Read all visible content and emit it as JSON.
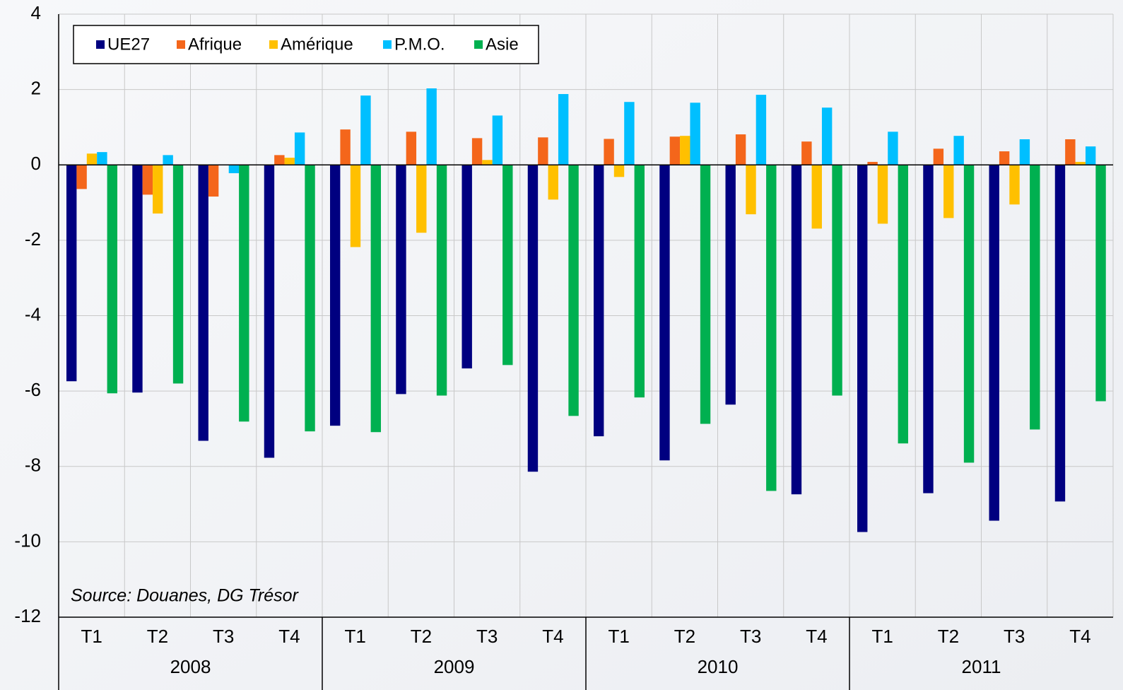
{
  "chart_data": {
    "type": "bar",
    "annotation": "Source: Douanes, DG Trésor",
    "categories": [
      "T1",
      "T2",
      "T3",
      "T4",
      "T1",
      "T2",
      "T3",
      "T4",
      "T1",
      "T2",
      "T3",
      "T4",
      "T1",
      "T2",
      "T3",
      "T4"
    ],
    "groups": [
      "2008",
      "2009",
      "2010",
      "2011"
    ],
    "series": [
      {
        "name": "UE27",
        "color": "#000080",
        "values": [
          -5.74,
          -6.04,
          -7.32,
          -7.77,
          -6.92,
          -6.08,
          -5.4,
          -8.14,
          -7.2,
          -7.84,
          -6.36,
          -8.74,
          -9.74,
          -8.71,
          -9.44,
          -8.93
        ]
      },
      {
        "name": "Afrique",
        "color": "#f4661b",
        "values": [
          -0.64,
          -0.79,
          -0.84,
          0.26,
          0.94,
          0.88,
          0.71,
          0.73,
          0.69,
          0.75,
          0.81,
          0.62,
          0.08,
          0.43,
          0.36,
          0.68
        ]
      },
      {
        "name": "Amérique",
        "color": "#ffc000",
        "values": [
          0.3,
          -1.29,
          0,
          0.19,
          -2.18,
          -1.8,
          0.13,
          -0.92,
          -0.32,
          0.77,
          -1.31,
          -1.69,
          -1.56,
          -1.41,
          -1.05,
          0.08
        ]
      },
      {
        "name": "P.M.O.",
        "color": "#00bfff",
        "values": [
          0.34,
          0.26,
          -0.22,
          0.86,
          1.84,
          2.03,
          1.31,
          1.88,
          1.67,
          1.65,
          1.86,
          1.52,
          0.88,
          0.77,
          0.68,
          0.49
        ]
      },
      {
        "name": "Asie",
        "color": "#00b050",
        "values": [
          -6.06,
          -5.8,
          -6.81,
          -7.07,
          -7.09,
          -6.12,
          -5.31,
          -6.66,
          -6.17,
          -6.87,
          -8.65,
          -6.12,
          -7.39,
          -7.9,
          -7.02,
          -6.27
        ]
      }
    ],
    "ylim": [
      -12,
      4
    ],
    "yticks": [
      4,
      2,
      0,
      -2,
      -4,
      -6,
      -8,
      -10,
      -12
    ],
    "grid": true,
    "legend": "top-left"
  }
}
